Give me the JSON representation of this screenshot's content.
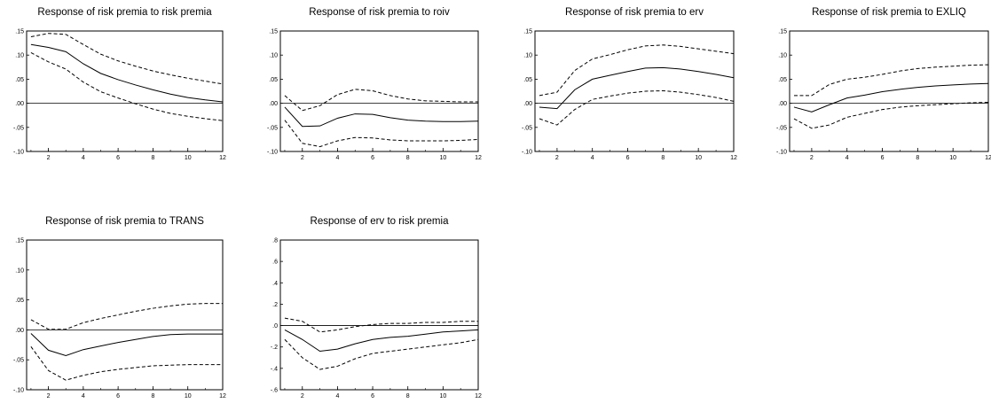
{
  "chart_data": [
    {
      "type": "line",
      "title": "Response of risk premia to risk premia",
      "x": [
        1,
        2,
        3,
        4,
        5,
        6,
        7,
        8,
        9,
        10,
        11,
        12
      ],
      "xticks": [
        2,
        4,
        6,
        8,
        10,
        12
      ],
      "xtick_labels": [
        "2",
        "4",
        "6",
        "8",
        "10",
        "12"
      ],
      "ylim": [
        -0.1,
        0.15
      ],
      "yticks": [
        -0.1,
        -0.05,
        0.0,
        0.05,
        0.1,
        0.15
      ],
      "ytick_labels": [
        "-.10",
        "-.05",
        ".00",
        ".05",
        ".10",
        ".15"
      ],
      "zero_line": 0,
      "series": [
        {
          "role": "upper",
          "style": "dashed",
          "values": [
            0.138,
            0.145,
            0.143,
            0.122,
            0.102,
            0.088,
            0.077,
            0.067,
            0.059,
            0.052,
            0.046,
            0.04
          ]
        },
        {
          "role": "response",
          "style": "solid",
          "values": [
            0.122,
            0.116,
            0.107,
            0.082,
            0.062,
            0.049,
            0.038,
            0.028,
            0.019,
            0.012,
            0.007,
            0.003
          ]
        },
        {
          "role": "lower",
          "style": "dashed",
          "values": [
            0.105,
            0.086,
            0.071,
            0.044,
            0.024,
            0.011,
            -0.001,
            -0.012,
            -0.021,
            -0.027,
            -0.032,
            -0.036
          ]
        }
      ]
    },
    {
      "type": "line",
      "title": "Response of risk premia to roiv",
      "x": [
        1,
        2,
        3,
        4,
        5,
        6,
        7,
        8,
        9,
        10,
        11,
        12
      ],
      "xticks": [
        2,
        4,
        6,
        8,
        10,
        12
      ],
      "xtick_labels": [
        "2",
        "4",
        "6",
        "8",
        "10",
        "12"
      ],
      "ylim": [
        -0.1,
        0.15
      ],
      "yticks": [
        -0.1,
        -0.05,
        0.0,
        0.05,
        0.1,
        0.15
      ],
      "ytick_labels": [
        "-.10",
        "-.05",
        ".00",
        ".05",
        ".10",
        ".15"
      ],
      "zero_line": 0,
      "series": [
        {
          "role": "upper",
          "style": "dashed",
          "values": [
            0.016,
            -0.015,
            -0.005,
            0.018,
            0.029,
            0.026,
            0.016,
            0.009,
            0.005,
            0.004,
            0.003,
            0.003
          ]
        },
        {
          "role": "response",
          "style": "solid",
          "values": [
            -0.008,
            -0.048,
            -0.047,
            -0.031,
            -0.022,
            -0.023,
            -0.03,
            -0.035,
            -0.037,
            -0.038,
            -0.038,
            -0.037
          ]
        },
        {
          "role": "lower",
          "style": "dashed",
          "values": [
            -0.035,
            -0.083,
            -0.09,
            -0.078,
            -0.071,
            -0.072,
            -0.076,
            -0.078,
            -0.078,
            -0.078,
            -0.077,
            -0.075
          ]
        }
      ]
    },
    {
      "type": "line",
      "title": "Response of risk premia to erv",
      "x": [
        1,
        2,
        3,
        4,
        5,
        6,
        7,
        8,
        9,
        10,
        11,
        12
      ],
      "xticks": [
        2,
        4,
        6,
        8,
        10,
        12
      ],
      "xtick_labels": [
        "2",
        "4",
        "6",
        "8",
        "10",
        "12"
      ],
      "ylim": [
        -0.1,
        0.15
      ],
      "yticks": [
        -0.1,
        -0.05,
        0.0,
        0.05,
        0.1,
        0.15
      ],
      "ytick_labels": [
        "-.10",
        "-.05",
        ".00",
        ".05",
        ".10",
        ".15"
      ],
      "zero_line": 0,
      "series": [
        {
          "role": "upper",
          "style": "dashed",
          "values": [
            0.016,
            0.023,
            0.068,
            0.092,
            0.101,
            0.111,
            0.119,
            0.121,
            0.118,
            0.113,
            0.108,
            0.103
          ]
        },
        {
          "role": "response",
          "style": "solid",
          "values": [
            -0.008,
            -0.011,
            0.028,
            0.05,
            0.058,
            0.066,
            0.073,
            0.074,
            0.071,
            0.066,
            0.06,
            0.053
          ]
        },
        {
          "role": "lower",
          "style": "dashed",
          "values": [
            -0.032,
            -0.045,
            -0.013,
            0.008,
            0.015,
            0.021,
            0.025,
            0.026,
            0.023,
            0.018,
            0.012,
            0.004
          ]
        }
      ]
    },
    {
      "type": "line",
      "title": "Response of risk premia to EXLIQ",
      "x": [
        1,
        2,
        3,
        4,
        5,
        6,
        7,
        8,
        9,
        10,
        11,
        12
      ],
      "xticks": [
        2,
        4,
        6,
        8,
        10,
        12
      ],
      "xtick_labels": [
        "2",
        "4",
        "6",
        "8",
        "10",
        "12"
      ],
      "ylim": [
        -0.1,
        0.15
      ],
      "yticks": [
        -0.1,
        -0.05,
        0.0,
        0.05,
        0.1,
        0.15
      ],
      "ytick_labels": [
        "-.10",
        "-.05",
        ".00",
        ".05",
        ".10",
        ".15"
      ],
      "zero_line": 0,
      "series": [
        {
          "role": "upper",
          "style": "dashed",
          "values": [
            0.016,
            0.016,
            0.039,
            0.05,
            0.054,
            0.06,
            0.067,
            0.072,
            0.075,
            0.077,
            0.079,
            0.08
          ]
        },
        {
          "role": "response",
          "style": "solid",
          "values": [
            -0.008,
            -0.018,
            -0.003,
            0.011,
            0.017,
            0.024,
            0.029,
            0.033,
            0.036,
            0.038,
            0.04,
            0.041
          ]
        },
        {
          "role": "lower",
          "style": "dashed",
          "values": [
            -0.032,
            -0.052,
            -0.045,
            -0.029,
            -0.021,
            -0.013,
            -0.008,
            -0.005,
            -0.003,
            -0.001,
            0.001,
            0.002
          ]
        }
      ]
    },
    {
      "type": "line",
      "title": "Response of risk premia to TRANS",
      "x": [
        1,
        2,
        3,
        4,
        5,
        6,
        7,
        8,
        9,
        10,
        11,
        12
      ],
      "xticks": [
        2,
        4,
        6,
        8,
        10,
        12
      ],
      "xtick_labels": [
        "2",
        "4",
        "6",
        "8",
        "10",
        "12"
      ],
      "ylim": [
        -0.1,
        0.15
      ],
      "yticks": [
        -0.1,
        -0.05,
        0.0,
        0.05,
        0.1,
        0.15
      ],
      "ytick_labels": [
        "-.10",
        "-.05",
        ".00",
        ".05",
        ".10",
        ".15"
      ],
      "zero_line": 0,
      "series": [
        {
          "role": "upper",
          "style": "dashed",
          "values": [
            0.017,
            0.001,
            0.001,
            0.012,
            0.019,
            0.025,
            0.031,
            0.036,
            0.04,
            0.043,
            0.044,
            0.044
          ]
        },
        {
          "role": "response",
          "style": "solid",
          "values": [
            -0.006,
            -0.034,
            -0.043,
            -0.033,
            -0.027,
            -0.021,
            -0.016,
            -0.011,
            -0.008,
            -0.007,
            -0.007,
            -0.007
          ]
        },
        {
          "role": "lower",
          "style": "dashed",
          "values": [
            -0.028,
            -0.068,
            -0.084,
            -0.076,
            -0.07,
            -0.066,
            -0.063,
            -0.06,
            -0.059,
            -0.058,
            -0.058,
            -0.058
          ]
        }
      ]
    },
    {
      "type": "line",
      "title": "Response of erv to risk premia",
      "x": [
        1,
        2,
        3,
        4,
        5,
        6,
        7,
        8,
        9,
        10,
        11,
        12
      ],
      "xticks": [
        2,
        4,
        6,
        8,
        10,
        12
      ],
      "xtick_labels": [
        "2",
        "4",
        "6",
        "8",
        "10",
        "12"
      ],
      "ylim": [
        -0.6,
        0.8
      ],
      "yticks": [
        -0.6,
        -0.4,
        -0.2,
        0.0,
        0.2,
        0.4,
        0.6,
        0.8
      ],
      "ytick_labels": [
        "-.6",
        "-.4",
        "-.2",
        ".0",
        ".2",
        ".4",
        ".6",
        ".8"
      ],
      "zero_line": 0,
      "series": [
        {
          "role": "upper",
          "style": "dashed",
          "values": [
            0.07,
            0.04,
            -0.06,
            -0.04,
            -0.01,
            0.01,
            0.02,
            0.02,
            0.03,
            0.03,
            0.04,
            0.04
          ]
        },
        {
          "role": "response",
          "style": "solid",
          "values": [
            -0.04,
            -0.13,
            -0.24,
            -0.22,
            -0.17,
            -0.13,
            -0.11,
            -0.1,
            -0.08,
            -0.06,
            -0.05,
            -0.04
          ]
        },
        {
          "role": "lower",
          "style": "dashed",
          "values": [
            -0.13,
            -0.3,
            -0.41,
            -0.38,
            -0.31,
            -0.26,
            -0.24,
            -0.22,
            -0.2,
            -0.18,
            -0.16,
            -0.13
          ]
        }
      ]
    }
  ]
}
